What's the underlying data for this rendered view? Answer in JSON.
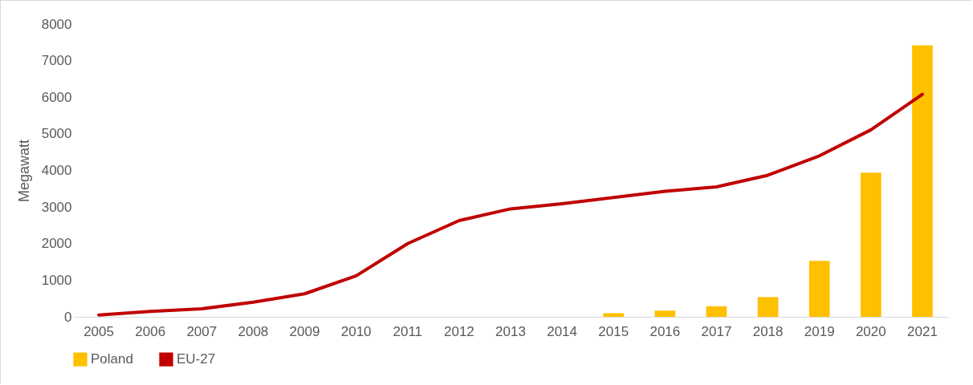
{
  "chart_data": {
    "type": "bar",
    "ylabel": "Megawatt",
    "categories": [
      "2005",
      "2006",
      "2007",
      "2008",
      "2009",
      "2010",
      "2011",
      "2012",
      "2013",
      "2014",
      "2015",
      "2016",
      "2017",
      "2018",
      "2019",
      "2020",
      "2021"
    ],
    "series": [
      {
        "name": "Poland",
        "color": "#ffc000",
        "values": [
          null,
          null,
          null,
          null,
          null,
          null,
          null,
          null,
          null,
          null,
          100,
          170,
          290,
          540,
          1530,
          3940,
          7420
        ]
      },
      {
        "name": "EU-27",
        "type": "line",
        "color": "#c00000",
        "values": [
          50,
          150,
          220,
          400,
          630,
          1120,
          2000,
          2630,
          2950,
          3090,
          3260,
          3430,
          3550,
          3870,
          4400,
          5110,
          6080
        ]
      }
    ],
    "ylim": [
      0,
      8000
    ],
    "yticks": [
      0,
      1000,
      2000,
      3000,
      4000,
      5000,
      6000,
      7000,
      8000
    ],
    "grid": false,
    "legend": "bottom"
  }
}
